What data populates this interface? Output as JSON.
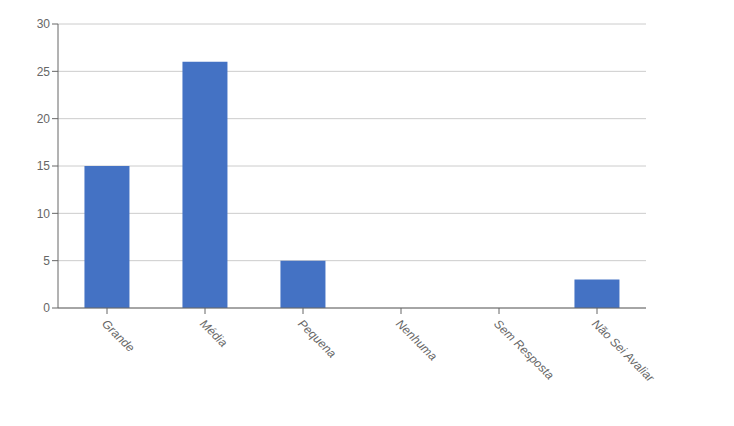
{
  "chart_data": {
    "type": "bar",
    "categories": [
      "Grande",
      "Média",
      "Pequena",
      "Nenhuma",
      "Sem Resposta",
      "Não Sei Avaliar"
    ],
    "values": [
      15,
      26,
      5,
      0,
      0,
      3
    ],
    "color": "#4472C4",
    "ylim": [
      0,
      30
    ],
    "yticks": [
      0,
      5,
      10,
      15,
      20,
      25,
      30
    ],
    "grid": true
  }
}
